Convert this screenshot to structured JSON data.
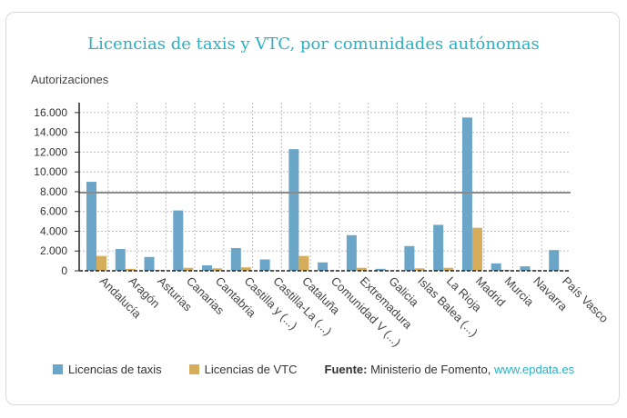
{
  "chart_data": {
    "type": "bar",
    "title": "Licencias de taxis y VTC, por comunidades autónomas",
    "ylabel": "Autorizaciones",
    "xlabel": "",
    "ylim": [
      0,
      17000
    ],
    "yticks": [
      0,
      2000,
      4000,
      6000,
      8000,
      10000,
      12000,
      14000,
      16000
    ],
    "ytick_labels": [
      "0",
      "2.000",
      "4.000",
      "6.000",
      "8.000",
      "10.000",
      "12.000",
      "14.000",
      "16.000"
    ],
    "reference_line": 7900,
    "categories": [
      "Andalucía",
      "Aragón",
      "Asturias",
      "Canarias",
      "Cantabria",
      "Castilla y (...)",
      "Castilla-La (...)",
      "Cataluña",
      "Comunidad V (...)",
      "Extremadura",
      "Galicia",
      "Islas Balea (...)",
      "La Rioja",
      "Madrid",
      "Murcia",
      "Navarra",
      "País Vasco"
    ],
    "series": [
      {
        "name": "Licencias de taxis",
        "color": "#6ba6c9",
        "values": [
          9000,
          2200,
          1400,
          6100,
          550,
          2300,
          1150,
          12300,
          850,
          3600,
          200,
          2500,
          4650,
          15500,
          750,
          450,
          2100
        ]
      },
      {
        "name": "Licencias de VTC",
        "color": "#d6ad5a",
        "values": [
          1500,
          200,
          100,
          300,
          250,
          350,
          50,
          1500,
          50,
          300,
          50,
          250,
          300,
          4350,
          100,
          50,
          50
        ]
      }
    ]
  },
  "legend": {
    "taxis_label": "Licencias de taxis",
    "vtc_label": "Licencias de VTC"
  },
  "source": {
    "label": "Fuente:",
    "text": "Ministerio de Fomento,",
    "link": "www.epdata.es"
  }
}
